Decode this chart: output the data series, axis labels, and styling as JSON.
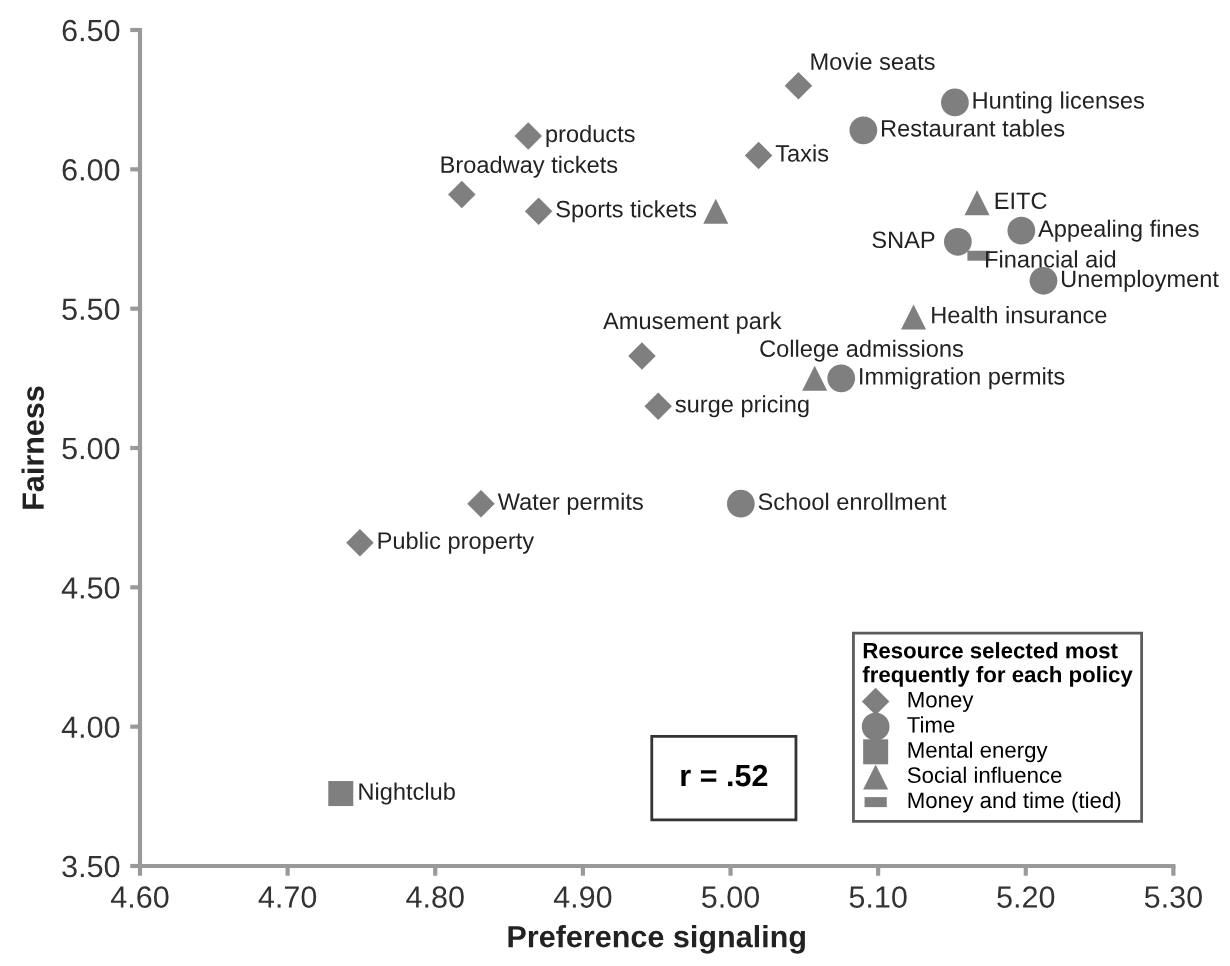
{
  "chart_data": {
    "type": "scatter",
    "xlabel": "Preference signaling",
    "ylabel": "Fairness",
    "xlim": [
      4.6,
      5.3
    ],
    "xticks": [
      {
        "value": 4.6,
        "label": "4.60"
      },
      {
        "value": 4.7,
        "label": "4.70"
      },
      {
        "value": 4.8,
        "label": "4.80"
      },
      {
        "value": 4.9,
        "label": "4.90"
      },
      {
        "value": 5.0,
        "label": "5.00"
      },
      {
        "value": 5.1,
        "label": "5.10"
      },
      {
        "value": 5.2,
        "label": "5.20"
      },
      {
        "value": 5.3,
        "label": "5.30"
      }
    ],
    "ylim": [
      3.5,
      6.5
    ],
    "yticks": [
      {
        "value": 3.5,
        "label": "3.50"
      },
      {
        "value": 4.0,
        "label": "4.00"
      },
      {
        "value": 4.5,
        "label": "4.50"
      },
      {
        "value": 5.0,
        "label": "5.00"
      },
      {
        "value": 5.5,
        "label": "5.50"
      },
      {
        "value": 6.0,
        "label": "6.00"
      },
      {
        "value": 6.5,
        "label": "6.50"
      }
    ],
    "grid": false,
    "legend": "bottom right",
    "legend_title": "Resource selected most\nfrequently for each policy",
    "series": [
      {
        "name": "Money",
        "color": "#7f7f7f",
        "marker": "diamond",
        "x": [
          4.863,
          4.818,
          4.87,
          4.94,
          4.951,
          5.046,
          5.019,
          4.831,
          4.749
        ],
        "values": [
          6.12,
          5.91,
          5.85,
          5.33,
          5.15,
          6.3,
          6.05,
          4.8,
          4.66
        ]
      },
      {
        "name": "Time",
        "color": "#7f7f7f",
        "marker": "circle",
        "x": [
          5.152,
          5.09,
          5.197,
          5.154,
          5.212,
          5.075,
          5.007
        ],
        "values": [
          6.24,
          6.14,
          5.78,
          5.74,
          5.6,
          5.25,
          4.8
        ]
      },
      {
        "name": "Mental energy",
        "color": "#7f7f7f",
        "marker": "square",
        "x": [
          4.736
        ],
        "values": [
          3.76
        ]
      },
      {
        "name": "Social influence",
        "color": "#7f7f7f",
        "marker": "triangle",
        "x": [
          4.99,
          5.167,
          5.124,
          5.057
        ],
        "values": [
          5.85,
          5.88,
          5.47,
          5.25
        ]
      },
      {
        "name": "Money and time (tied)",
        "color": "#7f7f7f",
        "x": [
          5.168
        ],
        "values": [
          5.69
        ]
      }
    ],
    "annotations": [
      {
        "text": "products",
        "x": 4.863,
        "y": 6.12
      },
      {
        "text": "Broadway tickets",
        "x": 4.818,
        "y": 5.91
      },
      {
        "text": "Sports tickets",
        "x": 4.87,
        "y": 5.85
      },
      {
        "text": "Amusement park",
        "x": 4.94,
        "y": 5.33
      },
      {
        "text": "surge pricing",
        "x": 4.951,
        "y": 5.15
      },
      {
        "text": "Movie seats",
        "x": 5.046,
        "y": 6.3
      },
      {
        "text": "Taxis",
        "x": 5.019,
        "y": 6.05
      },
      {
        "text": "Water permits",
        "x": 4.831,
        "y": 4.8
      },
      {
        "text": "Public property",
        "x": 4.749,
        "y": 4.66
      },
      {
        "text": "Hunting licenses",
        "x": 5.152,
        "y": 6.24
      },
      {
        "text": "Restaurant tables",
        "x": 5.09,
        "y": 6.14
      },
      {
        "text": "Appealing fines",
        "x": 5.197,
        "y": 5.78
      },
      {
        "text": "SNAP",
        "x": 5.154,
        "y": 5.74
      },
      {
        "text": "Unemployment",
        "x": 5.212,
        "y": 5.6
      },
      {
        "text": "Immigration permits",
        "x": 5.075,
        "y": 5.25
      },
      {
        "text": "School enrollment",
        "x": 5.007,
        "y": 4.8
      },
      {
        "text": "Nightclub",
        "x": 4.736,
        "y": 3.76
      },
      {
        "text": "EITC",
        "x": 5.167,
        "y": 5.88
      },
      {
        "text": "Health insurance",
        "x": 5.124,
        "y": 5.47
      },
      {
        "text": "College admissions",
        "x": 5.057,
        "y": 5.25
      },
      {
        "text": "Financial aid",
        "x": 5.168,
        "y": 5.69
      },
      "r = .52"
    ]
  }
}
